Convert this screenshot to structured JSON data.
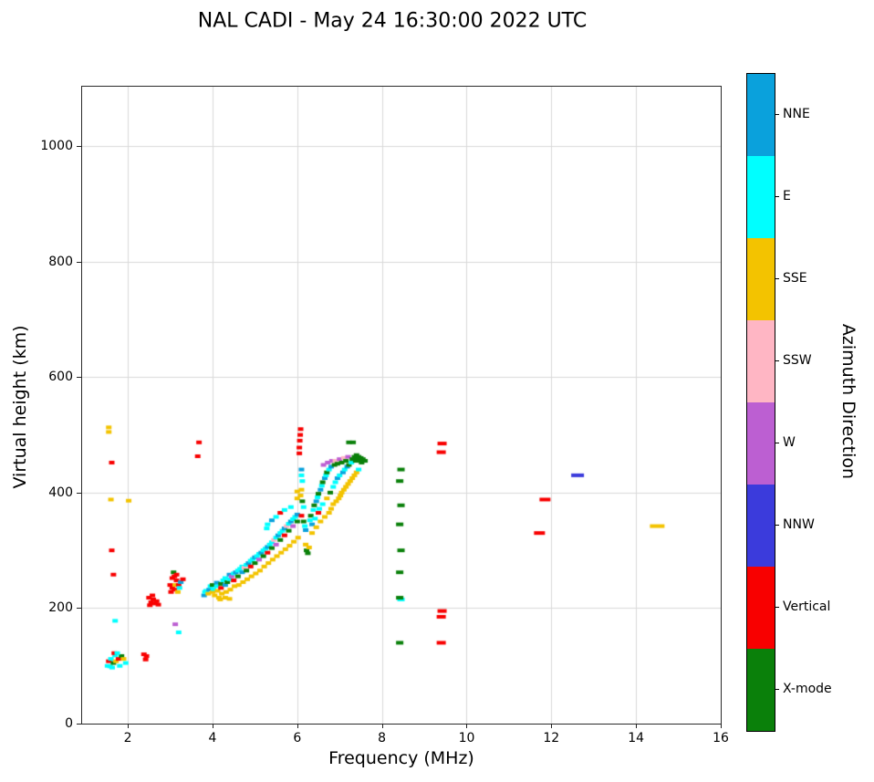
{
  "chart_data": {
    "type": "scatter",
    "title": "NAL CADI - May 24 16:30:00 2022 UTC",
    "xlabel": "Frequency (MHz)",
    "ylabel": "Virtual height (km)",
    "xlim": [
      0.92,
      16
    ],
    "ylim": [
      0,
      1103
    ],
    "xticks": [
      2,
      4,
      6,
      8,
      10,
      12,
      14,
      16
    ],
    "yticks": [
      0,
      200,
      400,
      600,
      800,
      1000
    ],
    "grid": true,
    "grid_color": "#d9d9d9",
    "marker": {
      "w": 6,
      "h": 4
    },
    "colorbar": {
      "label": "Azimuth Direction",
      "categories": [
        {
          "name": "NNE",
          "key": "NNE",
          "color": "#0AA1DC"
        },
        {
          "name": "E",
          "key": "E",
          "color": "#00FFFF"
        },
        {
          "name": "SSE",
          "key": "SSE",
          "color": "#F3C300"
        },
        {
          "name": "SSW",
          "key": "SSW",
          "color": "#FFB6C4"
        },
        {
          "name": "W",
          "key": "W",
          "color": "#BC5FD2"
        },
        {
          "name": "NNW",
          "key": "NNW",
          "color": "#3B3BDC"
        },
        {
          "name": "Vertical",
          "key": "V",
          "color": "#F80000"
        },
        {
          "name": "X-mode",
          "key": "X",
          "color": "#0A800A"
        }
      ]
    },
    "points": [
      [
        1.52,
        100,
        "E"
      ],
      [
        1.58,
        99,
        "E"
      ],
      [
        1.63,
        97,
        "E"
      ],
      [
        1.55,
        108,
        "V"
      ],
      [
        1.6,
        112,
        "E"
      ],
      [
        1.66,
        105,
        "X"
      ],
      [
        1.7,
        118,
        "E"
      ],
      [
        1.72,
        108,
        "SSE"
      ],
      [
        1.78,
        112,
        "V"
      ],
      [
        1.81,
        100,
        "E"
      ],
      [
        1.85,
        117,
        "X"
      ],
      [
        1.9,
        112,
        "SSE"
      ],
      [
        1.68,
        122,
        "V"
      ],
      [
        1.75,
        122,
        "E"
      ],
      [
        1.95,
        105,
        "E"
      ],
      [
        2.38,
        120,
        "V"
      ],
      [
        2.44,
        117,
        "V"
      ],
      [
        2.42,
        111,
        "V"
      ],
      [
        1.55,
        505,
        "SSE"
      ],
      [
        1.55,
        513,
        "SSE"
      ],
      [
        1.62,
        452,
        "V"
      ],
      [
        1.6,
        388,
        "SSE"
      ],
      [
        2.02,
        386,
        "SSE"
      ],
      [
        1.62,
        300,
        "V"
      ],
      [
        1.66,
        258,
        "V"
      ],
      [
        1.7,
        178,
        "E"
      ],
      [
        2.5,
        218,
        "V"
      ],
      [
        2.52,
        205,
        "V"
      ],
      [
        2.55,
        210,
        "V"
      ],
      [
        2.58,
        222,
        "V"
      ],
      [
        2.6,
        215,
        "V"
      ],
      [
        2.64,
        208,
        "V"
      ],
      [
        2.68,
        212,
        "V"
      ],
      [
        2.72,
        206,
        "V"
      ],
      [
        3,
        240,
        "V"
      ],
      [
        3.02,
        228,
        "V"
      ],
      [
        3.05,
        235,
        "V"
      ],
      [
        3.05,
        252,
        "V"
      ],
      [
        3.08,
        262,
        "X"
      ],
      [
        3.1,
        232,
        "V"
      ],
      [
        3.1,
        255,
        "V"
      ],
      [
        3.12,
        240,
        "SSE"
      ],
      [
        3.15,
        248,
        "V"
      ],
      [
        3.15,
        258,
        "V"
      ],
      [
        3.18,
        228,
        "SSE"
      ],
      [
        3.2,
        240,
        "V"
      ],
      [
        3.22,
        235,
        "E"
      ],
      [
        3.25,
        245,
        "NNE"
      ],
      [
        3.3,
        250,
        "V"
      ],
      [
        3.12,
        172,
        "W"
      ],
      [
        3.2,
        158,
        "E"
      ],
      [
        3.65,
        463,
        "V"
      ],
      [
        3.68,
        487,
        "V"
      ],
      [
        3.8,
        222,
        "NNE"
      ],
      [
        3.82,
        228,
        "E"
      ],
      [
        3.85,
        230,
        "E"
      ],
      [
        3.9,
        225,
        "SSE"
      ],
      [
        3.92,
        232,
        "NNE"
      ],
      [
        3.95,
        238,
        "E"
      ],
      [
        4,
        228,
        "SSE"
      ],
      [
        4,
        240,
        "X"
      ],
      [
        4.02,
        233,
        "E"
      ],
      [
        4.05,
        222,
        "SSE"
      ],
      [
        4.1,
        238,
        "E"
      ],
      [
        4.1,
        244,
        "NNE"
      ],
      [
        4.12,
        230,
        "SSE"
      ],
      [
        4.15,
        218,
        "SSE"
      ],
      [
        4.18,
        215,
        "SSE"
      ],
      [
        4.2,
        242,
        "X"
      ],
      [
        4.2,
        235,
        "V"
      ],
      [
        4.22,
        225,
        "SSE"
      ],
      [
        4.25,
        248,
        "E"
      ],
      [
        4.3,
        240,
        "NNE"
      ],
      [
        4.3,
        252,
        "E"
      ],
      [
        4.3,
        218,
        "SSE"
      ],
      [
        4.32,
        228,
        "SSE"
      ],
      [
        4.35,
        245,
        "X"
      ],
      [
        4.4,
        250,
        "E"
      ],
      [
        4.4,
        258,
        "NNE"
      ],
      [
        4.4,
        216,
        "SSE"
      ],
      [
        4.42,
        232,
        "SSE"
      ],
      [
        4.45,
        255,
        "W"
      ],
      [
        4.5,
        248,
        "V"
      ],
      [
        4.5,
        260,
        "E"
      ],
      [
        4.52,
        238,
        "SSE"
      ],
      [
        4.55,
        262,
        "NNE"
      ],
      [
        4.6,
        255,
        "X"
      ],
      [
        4.6,
        265,
        "E"
      ],
      [
        4.62,
        240,
        "SSE"
      ],
      [
        4.65,
        268,
        "E"
      ],
      [
        4.7,
        262,
        "NNE"
      ],
      [
        4.7,
        272,
        "E"
      ],
      [
        4.72,
        245,
        "SSE"
      ],
      [
        4.75,
        270,
        "SSW"
      ],
      [
        4.8,
        265,
        "X"
      ],
      [
        4.8,
        275,
        "E"
      ],
      [
        4.82,
        250,
        "SSE"
      ],
      [
        4.85,
        278,
        "NNE"
      ],
      [
        4.9,
        272,
        "V"
      ],
      [
        4.9,
        282,
        "E"
      ],
      [
        4.92,
        255,
        "SSE"
      ],
      [
        4.95,
        285,
        "E"
      ],
      [
        5,
        278,
        "X"
      ],
      [
        5,
        288,
        "NNE"
      ],
      [
        5.02,
        260,
        "SSE"
      ],
      [
        5.05,
        290,
        "E"
      ],
      [
        5.1,
        284,
        "W"
      ],
      [
        5.1,
        294,
        "E"
      ],
      [
        5.12,
        265,
        "SSE"
      ],
      [
        5.15,
        296,
        "NNE"
      ],
      [
        5.2,
        290,
        "X"
      ],
      [
        5.2,
        300,
        "E"
      ],
      [
        5.22,
        272,
        "SSE"
      ],
      [
        5.25,
        303,
        "E"
      ],
      [
        5.28,
        338,
        "E"
      ],
      [
        5.3,
        296,
        "V"
      ],
      [
        5.3,
        306,
        "NNE"
      ],
      [
        5.32,
        278,
        "SSE"
      ],
      [
        5.3,
        345,
        "E"
      ],
      [
        5.35,
        310,
        "E"
      ],
      [
        5.4,
        304,
        "X"
      ],
      [
        5.4,
        314,
        "E"
      ],
      [
        5.42,
        284,
        "SSE"
      ],
      [
        5.4,
        352,
        "NNE"
      ],
      [
        5.45,
        318,
        "SSW"
      ],
      [
        5.5,
        310,
        "W"
      ],
      [
        5.5,
        322,
        "E"
      ],
      [
        5.52,
        290,
        "SSE"
      ],
      [
        5.5,
        358,
        "E"
      ],
      [
        5.55,
        326,
        "NNE"
      ],
      [
        5.6,
        318,
        "X"
      ],
      [
        5.6,
        330,
        "E"
      ],
      [
        5.62,
        296,
        "SSE"
      ],
      [
        5.6,
        365,
        "V"
      ],
      [
        5.65,
        334,
        "E"
      ],
      [
        5.7,
        326,
        "V"
      ],
      [
        5.7,
        338,
        "NNE"
      ],
      [
        5.72,
        302,
        "SSE"
      ],
      [
        5.7,
        370,
        "E"
      ],
      [
        5.75,
        342,
        "SSW"
      ],
      [
        5.8,
        334,
        "X"
      ],
      [
        5.8,
        346,
        "E"
      ],
      [
        5.82,
        308,
        "SSE"
      ],
      [
        5.85,
        350,
        "NNE"
      ],
      [
        5.85,
        375,
        "E"
      ],
      [
        5.9,
        342,
        "W"
      ],
      [
        5.9,
        354,
        "E"
      ],
      [
        5.92,
        315,
        "SSE"
      ],
      [
        5.95,
        358,
        "E"
      ],
      [
        6,
        350,
        "X"
      ],
      [
        6,
        362,
        "NNE"
      ],
      [
        6.02,
        322,
        "SSE"
      ],
      [
        6,
        390,
        "SSE"
      ],
      [
        6,
        402,
        "SSE"
      ],
      [
        6.05,
        468,
        "V"
      ],
      [
        6.05,
        478,
        "V"
      ],
      [
        6.06,
        490,
        "V"
      ],
      [
        6.07,
        500,
        "V"
      ],
      [
        6.08,
        510,
        "V"
      ],
      [
        6.1,
        430,
        "E"
      ],
      [
        6.1,
        440,
        "NNE"
      ],
      [
        6.12,
        420,
        "E"
      ],
      [
        6.1,
        405,
        "SSE"
      ],
      [
        6.08,
        395,
        "SSE"
      ],
      [
        6.12,
        385,
        "X"
      ],
      [
        6.15,
        375,
        "E"
      ],
      [
        6.1,
        360,
        "V"
      ],
      [
        6.15,
        350,
        "X"
      ],
      [
        6.18,
        342,
        "E"
      ],
      [
        6.2,
        335,
        "NNE"
      ],
      [
        6.2,
        310,
        "SSE"
      ],
      [
        6.22,
        300,
        "X"
      ],
      [
        6.25,
        295,
        "X"
      ],
      [
        6.28,
        305,
        "SSE"
      ],
      [
        6.3,
        352,
        "E"
      ],
      [
        6.32,
        360,
        "X"
      ],
      [
        6.35,
        345,
        "NNE"
      ],
      [
        6.35,
        330,
        "SSE"
      ],
      [
        6.38,
        370,
        "E"
      ],
      [
        6.4,
        378,
        "X"
      ],
      [
        6.42,
        355,
        "E"
      ],
      [
        6.45,
        385,
        "NNE"
      ],
      [
        6.45,
        340,
        "SSE"
      ],
      [
        6.48,
        392,
        "E"
      ],
      [
        6.5,
        398,
        "X"
      ],
      [
        6.5,
        365,
        "V"
      ],
      [
        6.52,
        372,
        "E"
      ],
      [
        6.55,
        405,
        "NNE"
      ],
      [
        6.55,
        350,
        "SSE"
      ],
      [
        6.58,
        412,
        "E"
      ],
      [
        6.6,
        418,
        "X"
      ],
      [
        6.6,
        380,
        "E"
      ],
      [
        6.62,
        448,
        "W"
      ],
      [
        6.65,
        425,
        "NNE"
      ],
      [
        6.65,
        358,
        "SSE"
      ],
      [
        6.68,
        430,
        "E"
      ],
      [
        6.7,
        435,
        "X"
      ],
      [
        6.7,
        390,
        "SSE"
      ],
      [
        6.72,
        452,
        "W"
      ],
      [
        6.75,
        440,
        "E"
      ],
      [
        6.75,
        365,
        "SSE"
      ],
      [
        6.78,
        400,
        "X"
      ],
      [
        6.8,
        445,
        "NNE"
      ],
      [
        6.8,
        372,
        "SSE"
      ],
      [
        6.82,
        455,
        "W"
      ],
      [
        6.85,
        410,
        "E"
      ],
      [
        6.85,
        380,
        "SSE"
      ],
      [
        6.88,
        448,
        "X"
      ],
      [
        6.9,
        455,
        "SSW"
      ],
      [
        6.9,
        418,
        "E"
      ],
      [
        6.92,
        385,
        "SSE"
      ],
      [
        6.95,
        450,
        "X"
      ],
      [
        6.95,
        425,
        "NNE"
      ],
      [
        6.98,
        390,
        "SSE"
      ],
      [
        7,
        458,
        "W"
      ],
      [
        7,
        430,
        "E"
      ],
      [
        7.02,
        395,
        "SSE"
      ],
      [
        7.05,
        452,
        "X"
      ],
      [
        7.05,
        400,
        "SSE"
      ],
      [
        7.08,
        435,
        "NNE"
      ],
      [
        7.1,
        460,
        "SSW"
      ],
      [
        7.1,
        405,
        "SSE"
      ],
      [
        7.12,
        440,
        "E"
      ],
      [
        7.15,
        455,
        "X"
      ],
      [
        7.15,
        410,
        "SSE"
      ],
      [
        7.18,
        445,
        "NNE"
      ],
      [
        7.2,
        462,
        "W"
      ],
      [
        7.2,
        415,
        "SSE"
      ],
      [
        7.22,
        487,
        "X"
      ],
      [
        7.22,
        448,
        "X"
      ],
      [
        7.25,
        420,
        "SSE"
      ],
      [
        7.28,
        452,
        "E"
      ],
      [
        7.32,
        487,
        "X"
      ],
      [
        7.3,
        458,
        "X"
      ],
      [
        7.3,
        425,
        "SSE"
      ],
      [
        7.35,
        462,
        "X"
      ],
      [
        7.35,
        430,
        "SSE"
      ],
      [
        7.38,
        455,
        "X"
      ],
      [
        7.4,
        465,
        "X"
      ],
      [
        7.4,
        435,
        "SSE"
      ],
      [
        7.42,
        458,
        "X"
      ],
      [
        7.45,
        462,
        "X"
      ],
      [
        7.45,
        440,
        "E"
      ],
      [
        7.48,
        455,
        "X"
      ],
      [
        7.5,
        460,
        "X"
      ],
      [
        7.52,
        452,
        "X"
      ],
      [
        7.55,
        458,
        "X"
      ],
      [
        7.6,
        455,
        "X"
      ],
      [
        8.42,
        140,
        "X",
        8,
        4
      ],
      [
        8.45,
        215,
        "E",
        8,
        4
      ],
      [
        8.42,
        218,
        "X",
        8,
        4
      ],
      [
        8.42,
        262,
        "X",
        8,
        4
      ],
      [
        8.45,
        300,
        "X",
        8,
        4
      ],
      [
        8.42,
        345,
        "X",
        8,
        4
      ],
      [
        8.45,
        378,
        "X",
        8,
        4
      ],
      [
        8.42,
        420,
        "X",
        8,
        4
      ],
      [
        8.45,
        440,
        "X",
        8,
        4
      ],
      [
        9.4,
        140,
        "V",
        10,
        4
      ],
      [
        9.4,
        185,
        "V",
        10,
        4
      ],
      [
        9.42,
        195,
        "V",
        10,
        4
      ],
      [
        9.4,
        470,
        "V",
        10,
        4
      ],
      [
        9.42,
        485,
        "V",
        10,
        4
      ],
      [
        11.72,
        330,
        "V",
        12,
        4
      ],
      [
        11.85,
        388,
        "V",
        12,
        4
      ],
      [
        12.62,
        430,
        "NNW",
        14,
        4
      ],
      [
        14.5,
        342,
        "SSE",
        16,
        4
      ]
    ]
  }
}
